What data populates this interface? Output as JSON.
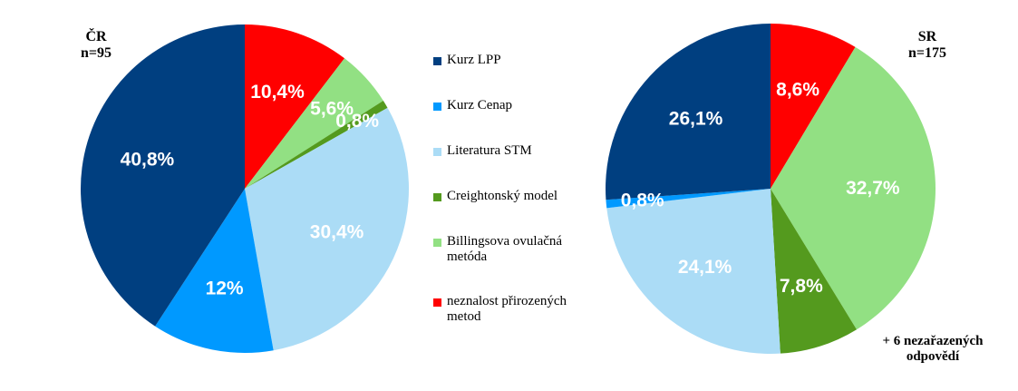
{
  "chart_data": [
    {
      "type": "pie",
      "title": "ČR",
      "subtitle": "n=95",
      "slices": [
        {
          "category": "neznalost přirozených metod",
          "value": 10.4,
          "label": "10,4%",
          "color": "#ff0000"
        },
        {
          "category": "Billingsova ovulačná metóda",
          "value": 5.6,
          "label": "5,6%",
          "color": "#92e083"
        },
        {
          "category": "Creightonský model",
          "value": 0.8,
          "label": "0,8%",
          "color": "#549a1e"
        },
        {
          "category": "Literatura STM",
          "value": 30.4,
          "label": "30,4%",
          "color": "#abdcf6"
        },
        {
          "category": "Kurz Cenap",
          "value": 12.0,
          "label": "12%",
          "color": "#0099ff"
        },
        {
          "category": "Kurz LPP",
          "value": 40.8,
          "label": "40,8%",
          "color": "#003f80"
        }
      ]
    },
    {
      "type": "pie",
      "title": "SR",
      "subtitle": "n=175",
      "note": "+ 6 nezařazených odpovědí",
      "slices": [
        {
          "category": "neznalost přirozených metod",
          "value": 8.6,
          "label": "8,6%",
          "color": "#ff0000"
        },
        {
          "category": "Billingsova ovulačná metóda",
          "value": 32.7,
          "label": "32,7%",
          "color": "#92e083"
        },
        {
          "category": "Creightonský model",
          "value": 7.8,
          "label": "7,8%",
          "color": "#549a1e"
        },
        {
          "category": "Literatura STM",
          "value": 24.1,
          "label": "24,1%",
          "color": "#abdcf6"
        },
        {
          "category": "Kurz Cenap",
          "value": 0.8,
          "label": "0,8%",
          "color": "#0099ff"
        },
        {
          "category": "Kurz LPP",
          "value": 26.1,
          "label": "26,1%",
          "color": "#003f80"
        }
      ]
    }
  ],
  "legend": [
    {
      "label": "Kurz LPP",
      "color": "#003f80"
    },
    {
      "label": "Kurz Cenap",
      "color": "#0099ff"
    },
    {
      "label": "Literatura STM",
      "color": "#abdcf6"
    },
    {
      "label": "Creightonský model",
      "color": "#549a1e"
    },
    {
      "label": "Billingsova ovulačná metóda",
      "color": "#92e083"
    },
    {
      "label": "neznalost přirozených metod",
      "color": "#ff0000"
    }
  ]
}
